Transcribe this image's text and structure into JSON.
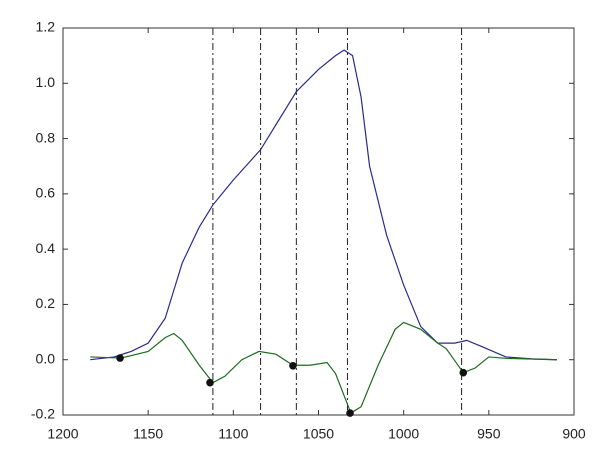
{
  "chart_data": {
    "type": "line",
    "xlim": [
      1200,
      900
    ],
    "ylim": [
      -0.2,
      1.2
    ],
    "xticks": [
      1200,
      1150,
      1100,
      1050,
      1000,
      950,
      900
    ],
    "yticks": [
      -0.2,
      {
        "value": 0,
        "label": "0.0"
      },
      0.2,
      0.4,
      0.6,
      0.8,
      {
        "value": 1,
        "label": "1.0"
      },
      1.2
    ],
    "series": [
      {
        "color": "#2a2a8c",
        "x": [
          1184,
          1170,
          1160,
          1150,
          1140,
          1130,
          1120,
          1112,
          1100,
          1084,
          1075,
          1063,
          1050,
          1040,
          1035,
          1030,
          1025,
          1020,
          1010,
          1000,
          990,
          980,
          970,
          963,
          955,
          940,
          925,
          910
        ],
        "values": [
          0.0,
          0.01,
          0.03,
          0.06,
          0.15,
          0.35,
          0.48,
          0.56,
          0.65,
          0.76,
          0.85,
          0.97,
          1.05,
          1.1,
          1.12,
          1.1,
          0.95,
          0.7,
          0.45,
          0.27,
          0.12,
          0.06,
          0.06,
          0.07,
          0.05,
          0.01,
          0.003,
          0.0
        ]
      },
      {
        "color": "#1e6b1e",
        "x": [
          1184,
          1166,
          1150,
          1140,
          1135,
          1130,
          1120,
          1112,
          1105,
          1095,
          1085,
          1075,
          1065,
          1055,
          1045,
          1040,
          1031,
          1025,
          1015,
          1005,
          1000,
          990,
          980,
          975,
          965,
          958,
          950,
          940,
          910
        ],
        "values": [
          0.01,
          0.006,
          0.03,
          0.08,
          0.095,
          0.07,
          -0.02,
          -0.083,
          -0.06,
          0.0,
          0.03,
          0.02,
          -0.02,
          -0.02,
          -0.01,
          -0.05,
          -0.193,
          -0.17,
          -0.02,
          0.11,
          0.135,
          0.11,
          0.06,
          0.04,
          -0.047,
          -0.03,
          0.01,
          0.005,
          0.0
        ]
      }
    ],
    "points": {
      "color": "#111111",
      "x": [
        1166.5,
        1113.7,
        1065,
        1031.5,
        965
      ],
      "values": [
        0.006,
        -0.083,
        -0.022,
        -0.193,
        -0.047
      ]
    },
    "vlines": [
      1112,
      1084,
      1063,
      1033,
      966
    ]
  }
}
